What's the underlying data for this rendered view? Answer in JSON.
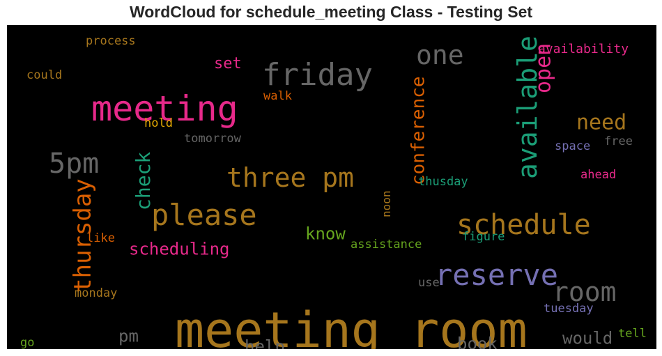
{
  "title": "WordCloud for schedule_meeting Class - Testing Set",
  "chart_data": {
    "type": "wordcloud",
    "title": "WordCloud for schedule_meeting Class - Testing Set",
    "background": "#000000",
    "words": [
      {
        "text": "meeting room",
        "color": "#a6761d",
        "orientation": "horizontal"
      },
      {
        "text": "meeting",
        "color": "#e7298a",
        "orientation": "horizontal"
      },
      {
        "text": "friday",
        "color": "#666666",
        "orientation": "horizontal"
      },
      {
        "text": "reserve",
        "color": "#7570b3",
        "orientation": "horizontal"
      },
      {
        "text": "schedule",
        "color": "#a6761d",
        "orientation": "horizontal"
      },
      {
        "text": "please",
        "color": "#a6761d",
        "orientation": "horizontal"
      },
      {
        "text": "three pm",
        "color": "#a6761d",
        "orientation": "horizontal"
      },
      {
        "text": "available",
        "color": "#1b9e77",
        "orientation": "vertical"
      },
      {
        "text": "room",
        "color": "#666666",
        "orientation": "horizontal"
      },
      {
        "text": "one",
        "color": "#666666",
        "orientation": "horizontal"
      },
      {
        "text": "5pm",
        "color": "#666666",
        "orientation": "horizontal"
      },
      {
        "text": "thursday",
        "color": "#d95f02",
        "orientation": "vertical"
      },
      {
        "text": "open",
        "color": "#e7298a",
        "orientation": "vertical"
      },
      {
        "text": "conference",
        "color": "#d95f02",
        "orientation": "vertical"
      },
      {
        "text": "need",
        "color": "#a6761d",
        "orientation": "horizontal"
      },
      {
        "text": "check",
        "color": "#1b9e77",
        "orientation": "vertical"
      },
      {
        "text": "scheduling",
        "color": "#e7298a",
        "orientation": "horizontal"
      },
      {
        "text": "know",
        "color": "#66a61e",
        "orientation": "horizontal"
      },
      {
        "text": "set",
        "color": "#e7298a",
        "orientation": "horizontal"
      },
      {
        "text": "pm",
        "color": "#666666",
        "orientation": "horizontal"
      },
      {
        "text": "help",
        "color": "#666666",
        "orientation": "horizontal"
      },
      {
        "text": "book",
        "color": "#666666",
        "orientation": "horizontal"
      },
      {
        "text": "would",
        "color": "#666666",
        "orientation": "horizontal"
      },
      {
        "text": "availability",
        "color": "#e7298a",
        "orientation": "horizontal"
      },
      {
        "text": "process",
        "color": "#a6761d",
        "orientation": "horizontal"
      },
      {
        "text": "could",
        "color": "#a6761d",
        "orientation": "horizontal"
      },
      {
        "text": "walk",
        "color": "#d95f02",
        "orientation": "horizontal"
      },
      {
        "text": "hold",
        "color": "#e6ab02",
        "orientation": "horizontal"
      },
      {
        "text": "tomorrow",
        "color": "#666666",
        "orientation": "horizontal"
      },
      {
        "text": "space",
        "color": "#7570b3",
        "orientation": "horizontal"
      },
      {
        "text": "free",
        "color": "#666666",
        "orientation": "horizontal"
      },
      {
        "text": "thusday",
        "color": "#1b9e77",
        "orientation": "horizontal"
      },
      {
        "text": "ahead",
        "color": "#e7298a",
        "orientation": "horizontal"
      },
      {
        "text": "noon",
        "color": "#a6761d",
        "orientation": "vertical"
      },
      {
        "text": "assistance",
        "color": "#66a61e",
        "orientation": "horizontal"
      },
      {
        "text": "figure",
        "color": "#1b9e77",
        "orientation": "horizontal"
      },
      {
        "text": "like",
        "color": "#d95f02",
        "orientation": "horizontal"
      },
      {
        "text": "monday",
        "color": "#a6761d",
        "orientation": "horizontal"
      },
      {
        "text": "use",
        "color": "#666666",
        "orientation": "horizontal"
      },
      {
        "text": "tuesday",
        "color": "#7570b3",
        "orientation": "horizontal"
      },
      {
        "text": "go",
        "color": "#66a61e",
        "orientation": "horizontal"
      },
      {
        "text": "tell",
        "color": "#66a61e",
        "orientation": "horizontal"
      }
    ]
  }
}
